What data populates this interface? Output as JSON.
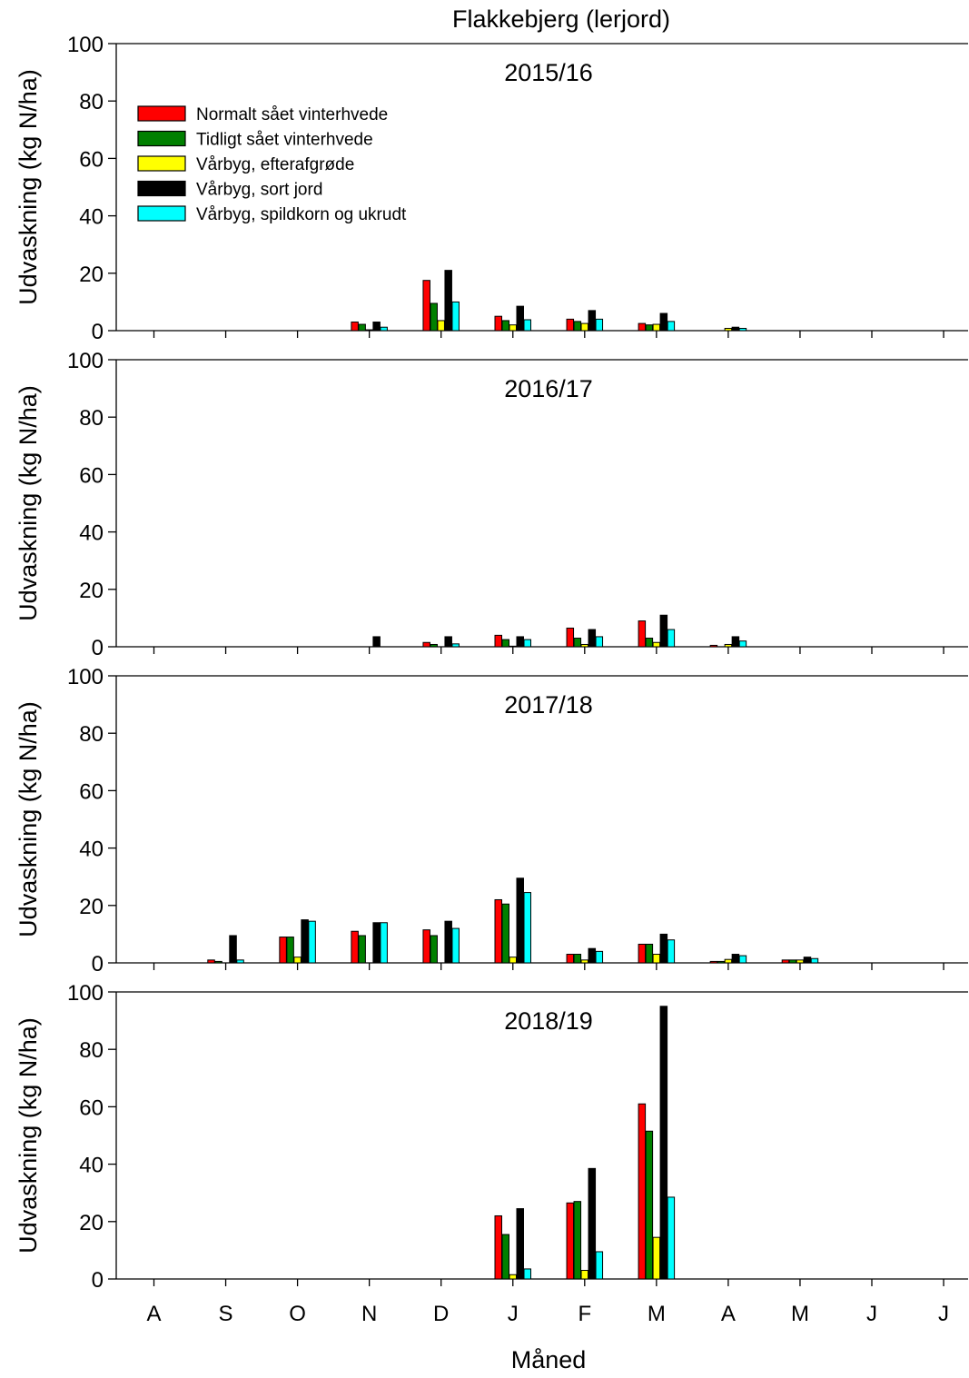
{
  "title": "Flakkebjerg (lerjord)",
  "chart_data": {
    "type": "bar",
    "xlabel": "Måned",
    "ylabel": "Udvaskning (kg N/ha)",
    "categories": [
      "A",
      "S",
      "O",
      "N",
      "D",
      "J",
      "F",
      "M",
      "A",
      "M",
      "J",
      "J"
    ],
    "ylim": [
      0,
      100
    ],
    "yticks": [
      0,
      20,
      40,
      60,
      80,
      100
    ],
    "legend_placement": "top-left",
    "grid": false,
    "series_legend": [
      {
        "name": "Normalt sået vinterhvede",
        "color": "#ff0000"
      },
      {
        "name": "Tidligt sået vinterhvede",
        "color": "#008000"
      },
      {
        "name": "Vårbyg, efterafgrøde",
        "color": "#ffff00"
      },
      {
        "name": "Vårbyg, sort jord",
        "color": "#000000"
      },
      {
        "name": "Vårbyg, spildkorn og ukrudt",
        "color": "#00ffff"
      }
    ],
    "panels": [
      {
        "label": "2015/16",
        "series": [
          {
            "name": "Normalt sået vinterhvede",
            "values": [
              0,
              0,
              0,
              3,
              17.5,
              5,
              4,
              2.5,
              0,
              0,
              0,
              0
            ]
          },
          {
            "name": "Tidligt sået vinterhvede",
            "values": [
              0,
              0,
              0,
              2.2,
              9.5,
              3.5,
              3.2,
              2,
              0,
              0,
              0,
              0
            ]
          },
          {
            "name": "Vårbyg, efterafgrøde",
            "values": [
              0,
              0,
              0,
              0.3,
              3.5,
              2,
              2.5,
              2.2,
              0.8,
              0,
              0,
              0
            ]
          },
          {
            "name": "Vårbyg, sort jord",
            "values": [
              0,
              0,
              0,
              3,
              21,
              8.5,
              7,
              6,
              1.2,
              0,
              0,
              0
            ]
          },
          {
            "name": "Vårbyg, spildkorn og ukrudt",
            "values": [
              0,
              0,
              0,
              1.2,
              10,
              3.8,
              4,
              3.2,
              0.8,
              0,
              0,
              0
            ]
          }
        ]
      },
      {
        "label": "2016/17",
        "series": [
          {
            "name": "Normalt sået vinterhvede",
            "values": [
              0,
              0,
              0,
              0,
              1.5,
              4,
              6.5,
              9,
              0.5,
              0,
              0,
              0
            ]
          },
          {
            "name": "Tidligt sået vinterhvede",
            "values": [
              0,
              0,
              0,
              0,
              0.8,
              2.5,
              3,
              3,
              0,
              0,
              0,
              0
            ]
          },
          {
            "name": "Vårbyg, efterafgrøde",
            "values": [
              0,
              0,
              0,
              0,
              0,
              0.2,
              0.8,
              1.5,
              0.8,
              0,
              0,
              0
            ]
          },
          {
            "name": "Vårbyg, sort jord",
            "values": [
              0,
              0,
              0,
              3.5,
              3.5,
              3.5,
              6,
              11,
              3.5,
              0,
              0,
              0
            ]
          },
          {
            "name": "Vårbyg, spildkorn og ukrudt",
            "values": [
              0,
              0,
              0,
              0,
              1,
              2.5,
              3.5,
              6,
              2,
              0,
              0,
              0
            ]
          }
        ]
      },
      {
        "label": "2017/18",
        "series": [
          {
            "name": "Normalt sået vinterhvede",
            "values": [
              0,
              1,
              9,
              11,
              11.5,
              22,
              3,
              6.5,
              0.5,
              1,
              0,
              0
            ]
          },
          {
            "name": "Tidligt sået vinterhvede",
            "values": [
              0,
              0.5,
              9,
              9.5,
              9.5,
              20.5,
              3,
              6.5,
              0.5,
              1,
              0,
              0
            ]
          },
          {
            "name": "Vårbyg, efterafgrøde",
            "values": [
              0,
              0,
              2,
              0,
              0,
              2,
              1,
              3,
              1.2,
              1,
              0,
              0
            ]
          },
          {
            "name": "Vårbyg, sort jord",
            "values": [
              0,
              9.5,
              15,
              14,
              14.5,
              29.5,
              5,
              10,
              3,
              2,
              0,
              0
            ]
          },
          {
            "name": "Vårbyg, spildkorn og ukrudt",
            "values": [
              0,
              1,
              14.5,
              14,
              12,
              24.5,
              4,
              8,
              2.5,
              1.5,
              0,
              0
            ]
          }
        ]
      },
      {
        "label": "2018/19",
        "series": [
          {
            "name": "Normalt sået vinterhvede",
            "values": [
              0,
              0,
              0,
              0,
              0,
              22,
              26.5,
              61,
              0,
              0,
              0,
              0
            ]
          },
          {
            "name": "Tidligt sået vinterhvede",
            "values": [
              0,
              0,
              0,
              0,
              0,
              15.5,
              27,
              51.5,
              0,
              0,
              0,
              0
            ]
          },
          {
            "name": "Vårbyg, efterafgrøde",
            "values": [
              0,
              0,
              0,
              0,
              0,
              1.5,
              3,
              14.5,
              0,
              0,
              0,
              0
            ]
          },
          {
            "name": "Vårbyg, sort jord",
            "values": [
              0,
              0,
              0,
              0,
              0,
              24.5,
              38.5,
              95,
              0,
              0,
              0,
              0
            ]
          },
          {
            "name": "Vårbyg, spildkorn og ukrudt",
            "values": [
              0,
              0,
              0,
              0,
              0,
              3.5,
              9.5,
              28.5,
              0,
              0,
              0,
              0
            ]
          }
        ]
      }
    ]
  }
}
